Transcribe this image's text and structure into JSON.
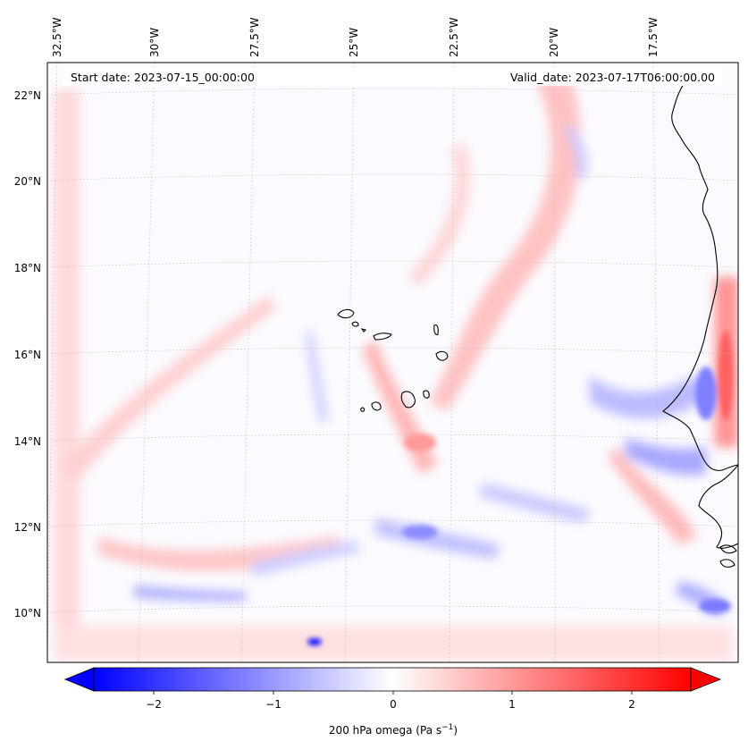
{
  "header": {
    "start_date": "Start date: 2023-07-15_00:00:00",
    "valid_date": "Valid_date: 2023-07-17T06:00:00.00"
  },
  "map": {
    "lon_labels": [
      "32.5°W",
      "30°W",
      "27.5°W",
      "25°W",
      "22.5°W",
      "20°W",
      "17.5°W"
    ],
    "lat_labels": [
      "22°N",
      "20°N",
      "18°N",
      "16°N",
      "14°N",
      "12°N",
      "10°N"
    ],
    "grid": true,
    "field_colormap": "bwr",
    "colors": {
      "negative": "#0000ff",
      "neutral": "#ffffff",
      "positive": "#ff0000",
      "coast": "#000000",
      "grid": "#c9b8b0"
    }
  },
  "colorbar": {
    "ticks": [
      "−2",
      "−1",
      "0",
      "1",
      "2"
    ],
    "label": "200 hPa omega (Pa s",
    "label_sup": "−1",
    "label_close": ")",
    "range": [
      -2.6,
      2.6
    ],
    "extend": "both"
  }
}
